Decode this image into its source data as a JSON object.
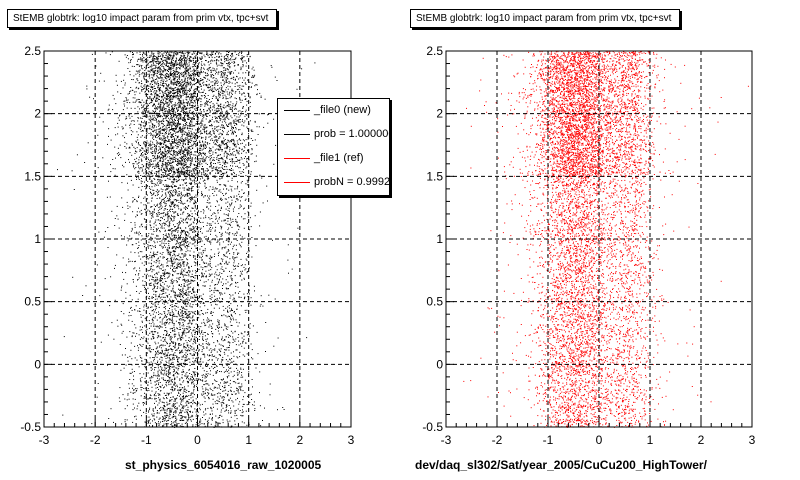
{
  "chart_data": [
    {
      "type": "scatter",
      "title": "StEMB globtrk: log10 impact param from prim vtx, tpc+svt",
      "xlabel": "st_physics_6054016_raw_1020005",
      "ylabel": "",
      "xlim": [
        -3,
        3
      ],
      "ylim": [
        -0.5,
        2.5
      ],
      "xticks": [
        "-3",
        "-2",
        "-1",
        "0",
        "1",
        "2",
        "3"
      ],
      "yticks": [
        "-0.5",
        "0",
        "0.5",
        "1",
        "1.5",
        "2",
        "2.5"
      ],
      "grid": true,
      "marker_color": "#000000",
      "legend": {
        "placement": "top-right",
        "entries": [
          {
            "label": "_file0 (new)",
            "color": "#000000"
          },
          {
            "label": "prob = 1.000000",
            "color": "#000000"
          },
          {
            "label": "_file1 (ref)",
            "color": "#ff0000"
          },
          {
            "label": "probN = 0.999210",
            "color": "#ff0000"
          }
        ]
      },
      "density": {
        "x_core": [
          -1.0,
          0.1
        ],
        "dense_y_range": [
          1.5,
          2.5
        ]
      }
    },
    {
      "type": "scatter",
      "title": "StEMB globtrk: log10 impact param from prim vtx, tpc+svt",
      "xlabel": "dev/daq_sl302/Sat/year_2005/CuCu200_HighTower/",
      "ylabel": "",
      "xlim": [
        -3,
        3
      ],
      "ylim": [
        -0.5,
        2.5
      ],
      "xticks": [
        "-3",
        "-2",
        "-1",
        "0",
        "1",
        "2",
        "3"
      ],
      "yticks": [
        "-0.5",
        "0",
        "0.5",
        "1",
        "1.5",
        "2",
        "2.5"
      ],
      "grid": true,
      "marker_color": "#ff0000",
      "density": {
        "x_core": [
          -1.0,
          0.1
        ],
        "dense_y_range": [
          1.5,
          2.5
        ]
      }
    }
  ]
}
